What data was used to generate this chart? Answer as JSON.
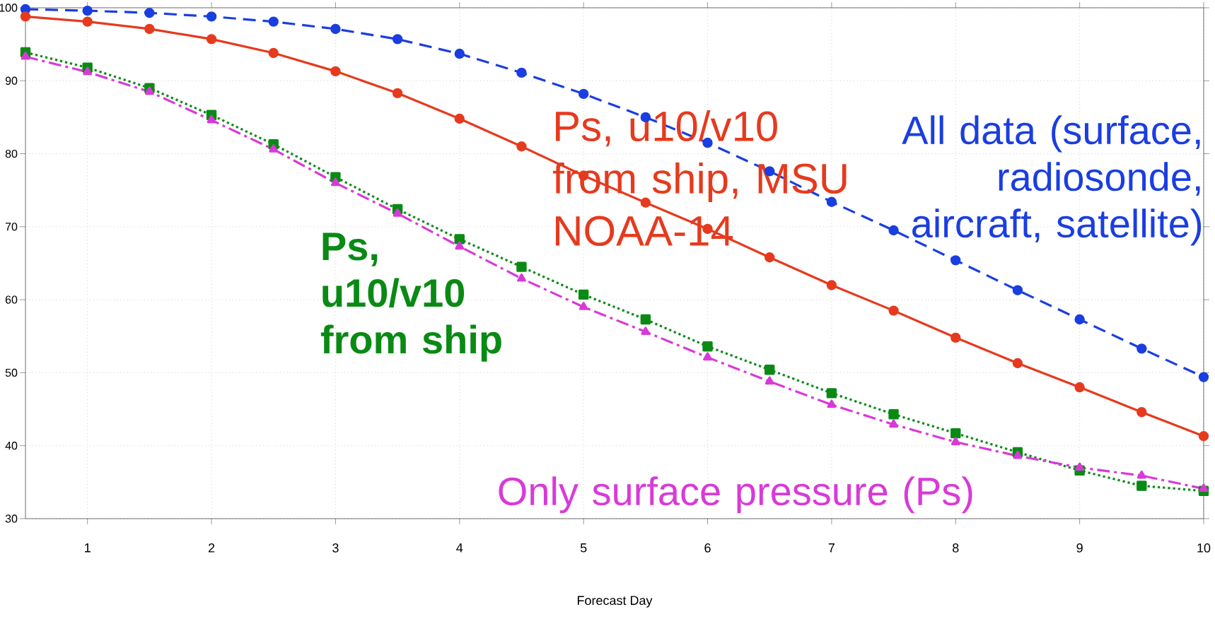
{
  "chart_data": {
    "type": "line",
    "xlabel": "Forecast Day",
    "x": [
      0.5,
      1,
      1.5,
      2,
      2.5,
      3,
      3.5,
      4,
      4.5,
      5,
      5.5,
      6,
      6.5,
      7,
      7.5,
      8,
      8.5,
      9,
      9.5,
      10
    ],
    "series": [
      {
        "name": "All data (surface, radiosonde, aircraft, satellite)",
        "color": "#1a3ee0",
        "marker": "circle",
        "line_style": "dashed",
        "values": [
          99.8,
          99.6,
          99.3,
          98.8,
          98.1,
          97.1,
          95.7,
          93.7,
          91.1,
          88.2,
          85.0,
          81.5,
          77.6,
          73.4,
          69.5,
          65.4,
          61.3,
          57.3,
          53.3,
          49.4
        ]
      },
      {
        "name": "Ps, u10/v10 from ship, MSU NOAA-14",
        "color": "#e63a1e",
        "marker": "circle",
        "line_style": "solid",
        "values": [
          98.8,
          98.1,
          97.1,
          95.7,
          93.8,
          91.3,
          88.3,
          84.8,
          81.0,
          77.0,
          73.3,
          69.7,
          65.8,
          62.0,
          58.5,
          54.8,
          51.3,
          48.0,
          44.6,
          41.3
        ]
      },
      {
        "name": "**Ps, u10/v10 from ship**",
        "color": "#0a8a14",
        "marker": "square",
        "line_style": "dotted",
        "values": [
          93.9,
          91.8,
          89.0,
          85.3,
          81.3,
          76.8,
          72.4,
          68.3,
          64.5,
          60.7,
          57.3,
          53.6,
          50.4,
          47.2,
          44.3,
          41.7,
          39.1,
          36.6,
          34.5,
          33.8
        ]
      },
      {
        "name": "Only surface pressure (Ps)",
        "color": "#d83ad8",
        "marker": "triangle",
        "line_style": "dashdot",
        "values": [
          93.3,
          91.2,
          88.5,
          84.6,
          80.6,
          76.0,
          71.8,
          67.3,
          62.9,
          59.0,
          55.6,
          52.1,
          48.8,
          45.6,
          42.9,
          40.5,
          38.6,
          37.0,
          35.9,
          34.1
        ]
      }
    ],
    "xlim": [
      0.5,
      10
    ],
    "ylim": [
      30,
      100
    ],
    "xticks": [
      1,
      2,
      3,
      4,
      5,
      6,
      7,
      8,
      9,
      10
    ],
    "yticks": [
      30,
      40,
      50,
      60,
      70,
      80,
      90,
      100
    ],
    "grid": true
  }
}
